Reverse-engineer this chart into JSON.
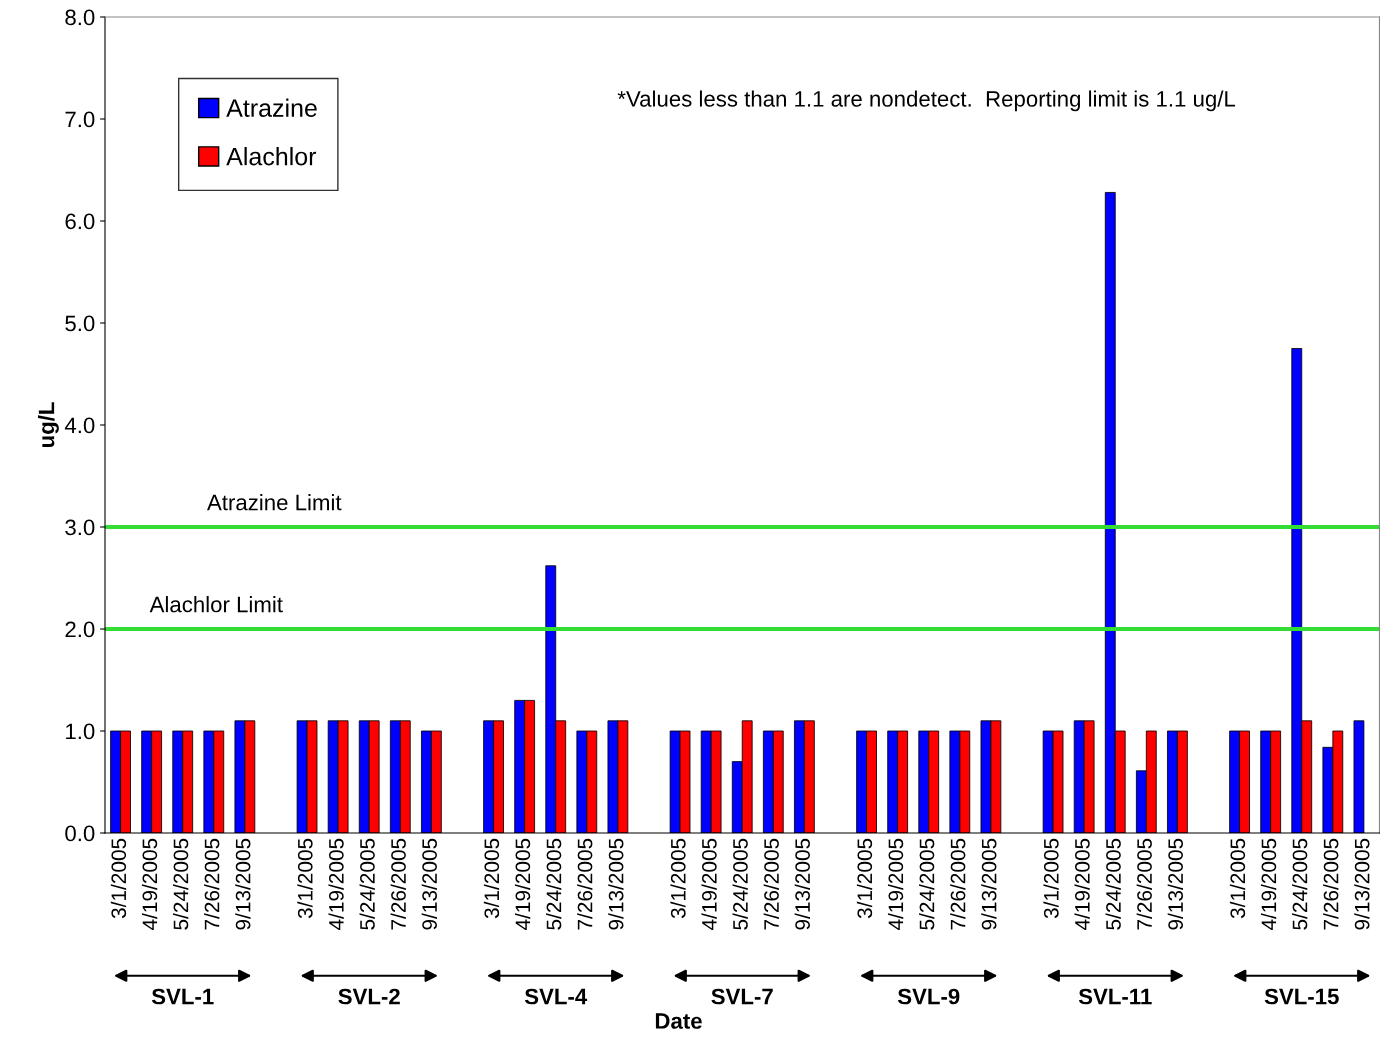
{
  "chart_data": {
    "type": "bar",
    "xlabel": "Date",
    "ylabel": "ug/L",
    "categories": [
      "3/1/2005",
      "4/19/2005",
      "5/24/2005",
      "7/26/2005",
      "9/13/2005",
      null,
      "3/1/2005",
      "4/19/2005",
      "5/24/2005",
      "7/26/2005",
      "9/13/2005",
      null,
      "3/1/2005",
      "4/19/2005",
      "5/24/2005",
      "7/26/2005",
      "9/13/2005",
      null,
      "3/1/2005",
      "4/19/2005",
      "5/24/2005",
      "7/26/2005",
      "9/13/2005",
      null,
      "3/1/2005",
      "4/19/2005",
      "5/24/2005",
      "7/26/2005",
      "9/13/2005",
      null,
      "3/1/2005",
      "4/19/2005",
      "5/24/2005",
      "7/26/2005",
      "9/13/2005",
      null,
      "3/1/2005",
      "4/19/2005",
      "5/24/2005",
      "7/26/2005",
      "9/13/2005"
    ],
    "series": [
      {
        "name": "Atrazine",
        "color": "#0000ff",
        "values": [
          1.0,
          1.0,
          1.0,
          1.0,
          1.1,
          null,
          1.1,
          1.1,
          1.1,
          1.1,
          1.0,
          null,
          1.1,
          1.3,
          2.62,
          1.0,
          1.1,
          null,
          1.0,
          1.0,
          0.7,
          1.0,
          1.1,
          null,
          1.0,
          1.0,
          1.0,
          1.0,
          1.1,
          null,
          1.0,
          1.1,
          6.28,
          0.61,
          1.0,
          null,
          1.0,
          1.0,
          4.75,
          0.84,
          1.1
        ]
      },
      {
        "name": "Alachlor",
        "color": "#ff0000",
        "values": [
          1.0,
          1.0,
          1.0,
          1.0,
          1.1,
          null,
          1.1,
          1.1,
          1.1,
          1.1,
          1.0,
          null,
          1.1,
          1.3,
          1.1,
          1.0,
          1.1,
          null,
          1.0,
          1.0,
          1.1,
          1.0,
          1.1,
          null,
          1.0,
          1.0,
          1.0,
          1.0,
          1.1,
          null,
          1.0,
          1.1,
          1.0,
          1.0,
          1.0,
          null,
          1.0,
          1.0,
          1.1,
          1.0,
          null
        ]
      }
    ],
    "ylim": [
      0,
      8
    ],
    "yticks": [
      {
        "value": 0,
        "label": "0.0"
      },
      {
        "value": 1,
        "label": "1.0"
      },
      {
        "value": 2,
        "label": "2.0"
      },
      {
        "value": 3,
        "label": "3.0"
      },
      {
        "value": 4,
        "label": "4.0"
      },
      {
        "value": 5,
        "label": "5.0"
      },
      {
        "value": 6,
        "label": "6.0"
      },
      {
        "value": 7,
        "label": "7.0"
      },
      {
        "value": 8,
        "label": "8.0"
      }
    ],
    "ref_lines": [
      {
        "axis": "y",
        "value": 3,
        "label": "Atrazine Limit",
        "color": "#33dd33"
      },
      {
        "axis": "y",
        "value": 2,
        "label": "Alachlor Limit",
        "color": "#33dd33"
      }
    ],
    "annotations": [
      "*Values less than 1.1 are nondetect.  Reporting limit is 1.1 ug/L",
      "SVL-1",
      "SVL-2",
      "SVL-4",
      "SVL-7",
      "SVL-9",
      "SVL-11",
      "SVL-15"
    ],
    "grid": false,
    "legend": "top left"
  }
}
